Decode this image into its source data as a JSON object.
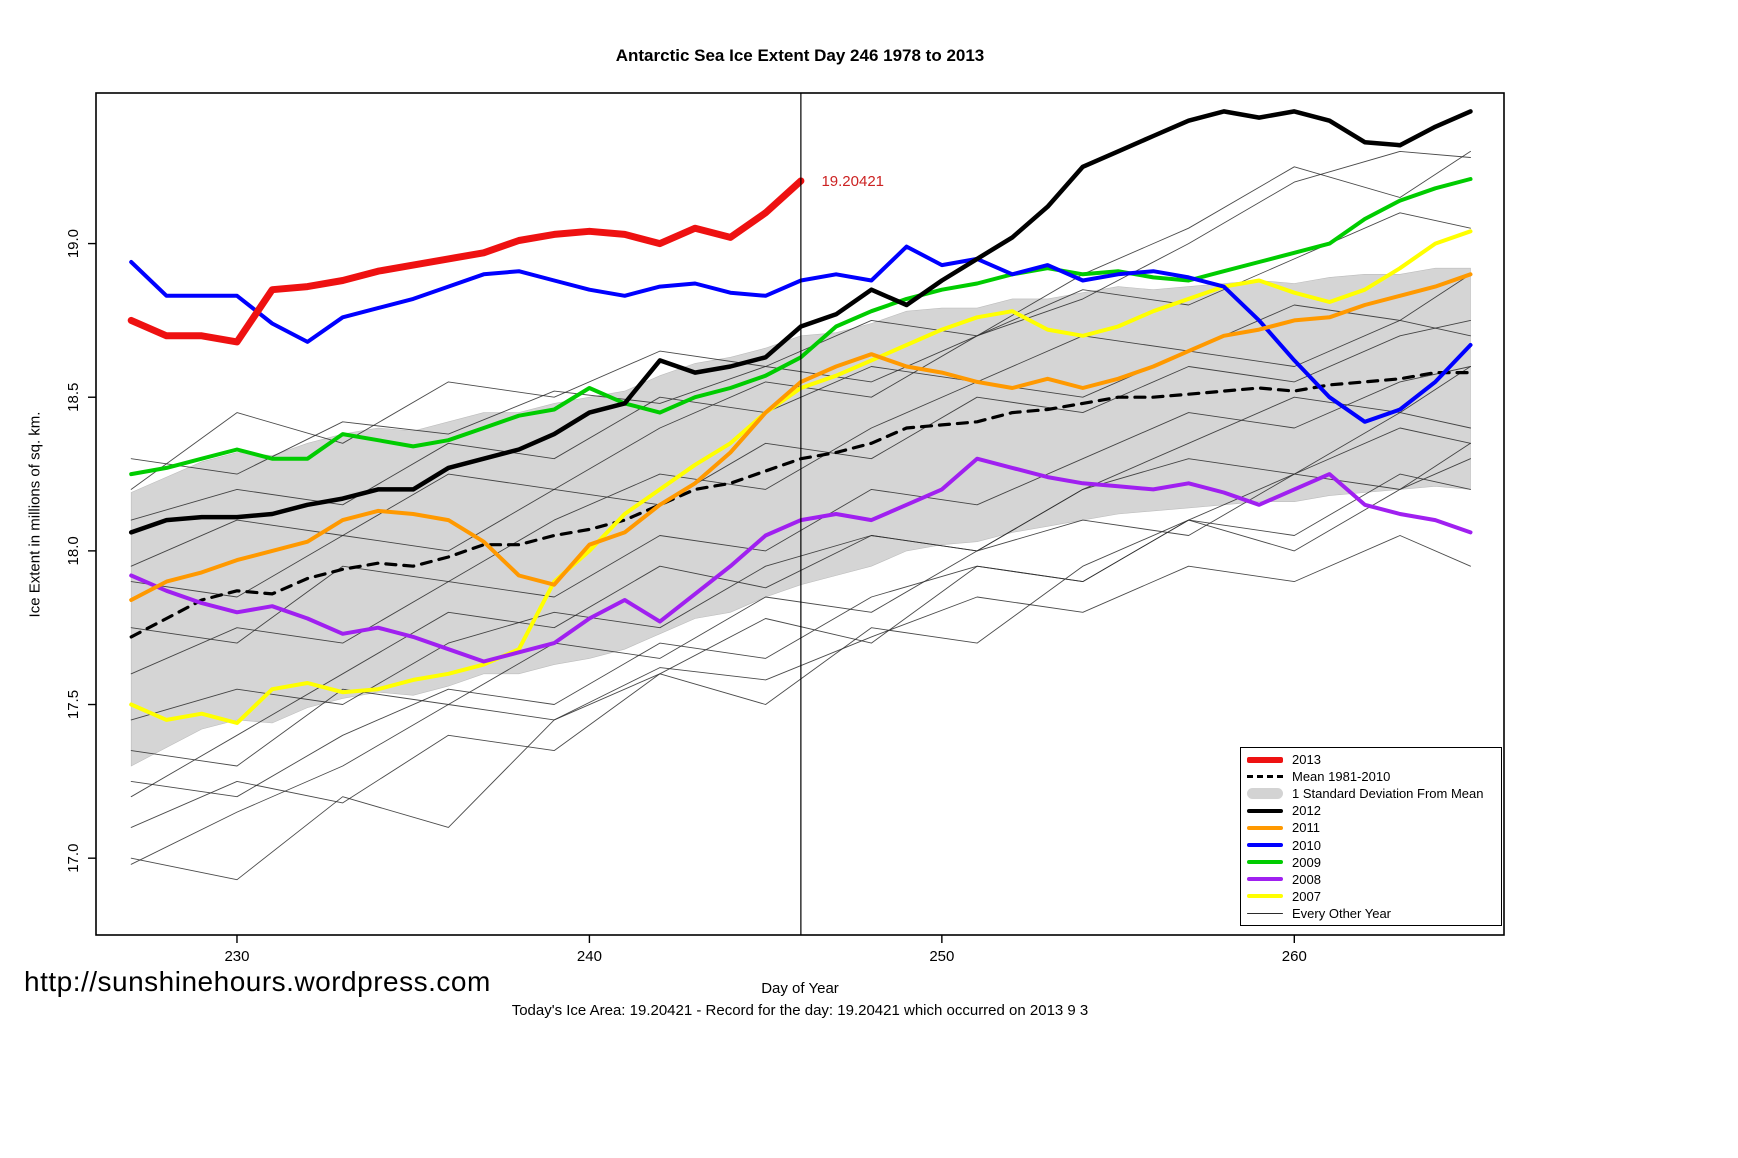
{
  "chart_data": {
    "type": "line",
    "title": "Antarctic Sea Ice Extent Day 246 1978 to 2013",
    "xlabel": "Day of Year",
    "ylabel": "Ice Extent in millions of sq. km.",
    "xlim": [
      226,
      265.95
    ],
    "ylim": [
      16.75,
      19.49
    ],
    "x_ticks": [
      230,
      240,
      250,
      260
    ],
    "y_ticks": [
      17.0,
      17.5,
      18.0,
      18.5,
      19.0
    ],
    "y_tick_labels": [
      "17.0",
      "17.5",
      "18.0",
      "18.5",
      "19.0"
    ],
    "grid": false,
    "vline_x": 246,
    "annotation": {
      "x": 246.3,
      "y": 19.204,
      "text": "19.20421",
      "color": "#cc2222"
    },
    "x": [
      227,
      228,
      229,
      230,
      231,
      232,
      233,
      234,
      235,
      236,
      237,
      238,
      239,
      240,
      241,
      242,
      243,
      244,
      245,
      246,
      247,
      248,
      249,
      250,
      251,
      252,
      253,
      254,
      255,
      256,
      257,
      258,
      259,
      260,
      261,
      262,
      263,
      264,
      265
    ],
    "band": {
      "label": "1 Standard Deviation From Mean",
      "color": "#d3d3d3",
      "upper": [
        18.19,
        18.24,
        18.29,
        18.32,
        18.31,
        18.35,
        18.38,
        18.4,
        18.39,
        18.42,
        18.45,
        18.45,
        18.48,
        18.5,
        18.52,
        18.57,
        18.61,
        18.63,
        18.66,
        18.7,
        18.71,
        18.74,
        18.78,
        18.79,
        18.79,
        18.82,
        18.82,
        18.84,
        18.86,
        18.85,
        18.86,
        18.87,
        18.88,
        18.87,
        18.89,
        18.9,
        18.9,
        18.92,
        18.92
      ],
      "lower": [
        17.3,
        17.36,
        17.42,
        17.45,
        17.44,
        17.49,
        17.52,
        17.54,
        17.53,
        17.56,
        17.6,
        17.6,
        17.63,
        17.65,
        17.68,
        17.73,
        17.78,
        17.8,
        17.85,
        17.89,
        17.92,
        17.95,
        18.0,
        18.02,
        18.03,
        18.06,
        18.08,
        18.1,
        18.12,
        18.13,
        18.14,
        18.15,
        18.16,
        18.16,
        18.18,
        18.19,
        18.2,
        18.21,
        18.2
      ]
    },
    "mean": {
      "label": "Mean 1981-2010",
      "color": "#000000",
      "values": [
        17.72,
        17.78,
        17.84,
        17.87,
        17.86,
        17.91,
        17.94,
        17.96,
        17.95,
        17.98,
        18.02,
        18.02,
        18.05,
        18.07,
        18.1,
        18.15,
        18.2,
        18.22,
        18.26,
        18.3,
        18.32,
        18.35,
        18.4,
        18.41,
        18.42,
        18.45,
        18.46,
        18.48,
        18.5,
        18.5,
        18.51,
        18.52,
        18.53,
        18.52,
        18.54,
        18.55,
        18.56,
        18.58,
        18.58
      ]
    },
    "series": [
      {
        "name": "2013",
        "color": "#ee1111",
        "width": 7,
        "x": [
          227,
          228,
          229,
          230,
          231,
          232,
          233,
          234,
          235,
          236,
          237,
          238,
          239,
          240,
          241,
          242,
          243,
          244,
          245,
          246
        ],
        "values": [
          18.75,
          18.7,
          18.7,
          18.68,
          18.85,
          18.86,
          18.88,
          18.91,
          18.93,
          18.95,
          18.97,
          19.01,
          19.03,
          19.04,
          19.03,
          19.0,
          19.05,
          19.02,
          19.1,
          19.204
        ]
      },
      {
        "name": "2012",
        "color": "#000000",
        "width": 4.5,
        "values": [
          18.06,
          18.1,
          18.11,
          18.11,
          18.12,
          18.15,
          18.17,
          18.2,
          18.2,
          18.27,
          18.3,
          18.33,
          18.38,
          18.45,
          18.48,
          18.62,
          18.58,
          18.6,
          18.63,
          18.73,
          18.77,
          18.85,
          18.8,
          18.88,
          18.95,
          19.02,
          19.12,
          19.25,
          19.3,
          19.35,
          19.4,
          19.43,
          19.41,
          19.43,
          19.4,
          19.33,
          19.32,
          19.38,
          19.43
        ]
      },
      {
        "name": "2011",
        "color": "#ff9900",
        "width": 4,
        "values": [
          17.84,
          17.9,
          17.93,
          17.97,
          18.0,
          18.03,
          18.1,
          18.13,
          18.12,
          18.1,
          18.03,
          17.92,
          17.89,
          18.02,
          18.06,
          18.15,
          18.22,
          18.32,
          18.45,
          18.55,
          18.6,
          18.64,
          18.6,
          18.58,
          18.55,
          18.53,
          18.56,
          18.53,
          18.56,
          18.6,
          18.65,
          18.7,
          18.72,
          18.75,
          18.76,
          18.8,
          18.83,
          18.86,
          18.9
        ]
      },
      {
        "name": "2010",
        "color": "#0000ff",
        "width": 4,
        "values": [
          18.94,
          18.83,
          18.83,
          18.83,
          18.74,
          18.68,
          18.76,
          18.79,
          18.82,
          18.86,
          18.9,
          18.91,
          18.88,
          18.85,
          18.83,
          18.86,
          18.87,
          18.84,
          18.83,
          18.88,
          18.9,
          18.88,
          18.99,
          18.93,
          18.95,
          18.9,
          18.93,
          18.88,
          18.9,
          18.91,
          18.89,
          18.86,
          18.75,
          18.62,
          18.5,
          18.42,
          18.46,
          18.55,
          18.67
        ]
      },
      {
        "name": "2009",
        "color": "#00cc00",
        "width": 4,
        "values": [
          18.25,
          18.27,
          18.3,
          18.33,
          18.3,
          18.3,
          18.38,
          18.36,
          18.34,
          18.36,
          18.4,
          18.44,
          18.46,
          18.53,
          18.48,
          18.45,
          18.5,
          18.53,
          18.57,
          18.63,
          18.73,
          18.78,
          18.82,
          18.85,
          18.87,
          18.9,
          18.92,
          18.9,
          18.91,
          18.89,
          18.88,
          18.91,
          18.94,
          18.97,
          19.0,
          19.08,
          19.14,
          19.18,
          19.21
        ]
      },
      {
        "name": "2008",
        "color": "#a020f0",
        "width": 4,
        "values": [
          17.92,
          17.87,
          17.83,
          17.8,
          17.82,
          17.78,
          17.73,
          17.75,
          17.72,
          17.68,
          17.64,
          17.67,
          17.7,
          17.78,
          17.84,
          17.77,
          17.86,
          17.95,
          18.05,
          18.1,
          18.12,
          18.1,
          18.15,
          18.2,
          18.3,
          18.27,
          18.24,
          18.22,
          18.21,
          18.2,
          18.22,
          18.19,
          18.15,
          18.2,
          18.25,
          18.15,
          18.12,
          18.1,
          18.06
        ]
      },
      {
        "name": "2007",
        "color": "#ffff00",
        "width": 4,
        "values": [
          17.5,
          17.45,
          17.47,
          17.44,
          17.55,
          17.57,
          17.54,
          17.55,
          17.58,
          17.6,
          17.63,
          17.68,
          17.9,
          18.0,
          18.12,
          18.2,
          18.28,
          18.35,
          18.45,
          18.53,
          18.57,
          18.62,
          18.67,
          18.72,
          18.76,
          18.78,
          18.72,
          18.7,
          18.73,
          18.78,
          18.82,
          18.86,
          18.88,
          18.84,
          18.81,
          18.85,
          18.92,
          19.0,
          19.04
        ]
      }
    ],
    "other_years": {
      "label": "Every Other Year",
      "color": "#2b2b2b",
      "x": [
        227,
        230,
        233,
        236,
        239,
        242,
        245,
        248,
        251,
        254,
        257,
        260,
        263,
        265
      ],
      "lines": [
        [
          17.0,
          16.93,
          17.2,
          17.1,
          17.45,
          17.6,
          17.5,
          17.75,
          17.7,
          17.95,
          18.1,
          18.0,
          18.2,
          18.3
        ],
        [
          17.1,
          17.25,
          17.18,
          17.4,
          17.35,
          17.6,
          17.78,
          17.7,
          17.95,
          17.9,
          18.1,
          18.25,
          18.2,
          18.35
        ],
        [
          17.35,
          17.3,
          17.55,
          17.5,
          17.7,
          17.65,
          17.85,
          17.8,
          18.0,
          18.1,
          18.05,
          18.25,
          18.4,
          18.35
        ],
        [
          17.6,
          17.75,
          17.7,
          17.9,
          17.85,
          18.05,
          18.0,
          18.2,
          18.15,
          18.3,
          18.45,
          18.4,
          18.55,
          18.6
        ],
        [
          17.9,
          17.85,
          18.05,
          18.0,
          18.2,
          18.15,
          18.35,
          18.3,
          18.5,
          18.45,
          18.6,
          18.55,
          18.7,
          18.75
        ],
        [
          18.1,
          18.2,
          18.15,
          18.35,
          18.3,
          18.5,
          18.45,
          18.6,
          18.55,
          18.7,
          18.65,
          18.8,
          18.75,
          18.9
        ],
        [
          18.2,
          18.45,
          18.35,
          18.55,
          18.5,
          18.65,
          18.6,
          18.75,
          18.7,
          18.85,
          18.8,
          18.95,
          19.1,
          19.05
        ],
        [
          17.75,
          17.7,
          17.95,
          17.9,
          18.1,
          18.25,
          18.2,
          18.4,
          18.55,
          18.5,
          18.65,
          18.6,
          18.75,
          18.7
        ],
        [
          17.45,
          17.55,
          17.5,
          17.7,
          17.8,
          17.75,
          17.95,
          18.05,
          18.0,
          18.2,
          18.3,
          18.25,
          18.45,
          18.4
        ],
        [
          17.25,
          17.2,
          17.4,
          17.55,
          17.5,
          17.7,
          17.65,
          17.85,
          17.95,
          17.9,
          18.1,
          18.05,
          18.25,
          18.2
        ],
        [
          17.95,
          18.1,
          18.05,
          18.25,
          18.2,
          18.4,
          18.55,
          18.5,
          18.7,
          18.9,
          19.05,
          19.25,
          19.15,
          19.3
        ],
        [
          16.98,
          17.15,
          17.3,
          17.5,
          17.45,
          17.62,
          17.58,
          17.72,
          17.85,
          17.8,
          17.95,
          17.9,
          18.05,
          17.95
        ],
        [
          17.2,
          17.4,
          17.6,
          17.8,
          17.75,
          17.95,
          17.88,
          18.05,
          18.0,
          18.2,
          18.35,
          18.5,
          18.45,
          18.6
        ],
        [
          18.3,
          18.25,
          18.42,
          18.38,
          18.52,
          18.48,
          18.6,
          18.55,
          18.7,
          18.82,
          19.0,
          19.2,
          19.3,
          19.28
        ]
      ]
    },
    "legend": {
      "position": "bottom-right",
      "items": [
        {
          "label": "2013",
          "swatch": "line",
          "color": "#ee1111",
          "width": 6
        },
        {
          "label": "Mean 1981-2010",
          "swatch": "dashed",
          "color": "#000000",
          "width": 3
        },
        {
          "label": "1 Standard Deviation From Mean",
          "swatch": "band",
          "color": "#d3d3d3",
          "width": 11
        },
        {
          "label": "2012",
          "swatch": "line",
          "color": "#000000",
          "width": 4
        },
        {
          "label": "2011",
          "swatch": "line",
          "color": "#ff9900",
          "width": 4
        },
        {
          "label": "2010",
          "swatch": "line",
          "color": "#0000ff",
          "width": 4
        },
        {
          "label": "2009",
          "swatch": "line",
          "color": "#00cc00",
          "width": 4
        },
        {
          "label": "2008",
          "swatch": "line",
          "color": "#a020f0",
          "width": 4
        },
        {
          "label": "2007",
          "swatch": "line",
          "color": "#ffff00",
          "width": 4
        },
        {
          "label": "Every Other Year",
          "swatch": "line",
          "color": "#2b2b2b",
          "width": 1
        }
      ]
    }
  },
  "footer": {
    "site_url": "http://sunshinehours.wordpress.com",
    "caption": "Today's Ice Area: 19.20421  - Record for the day: 19.20421 which occurred on 2013 9 3"
  }
}
